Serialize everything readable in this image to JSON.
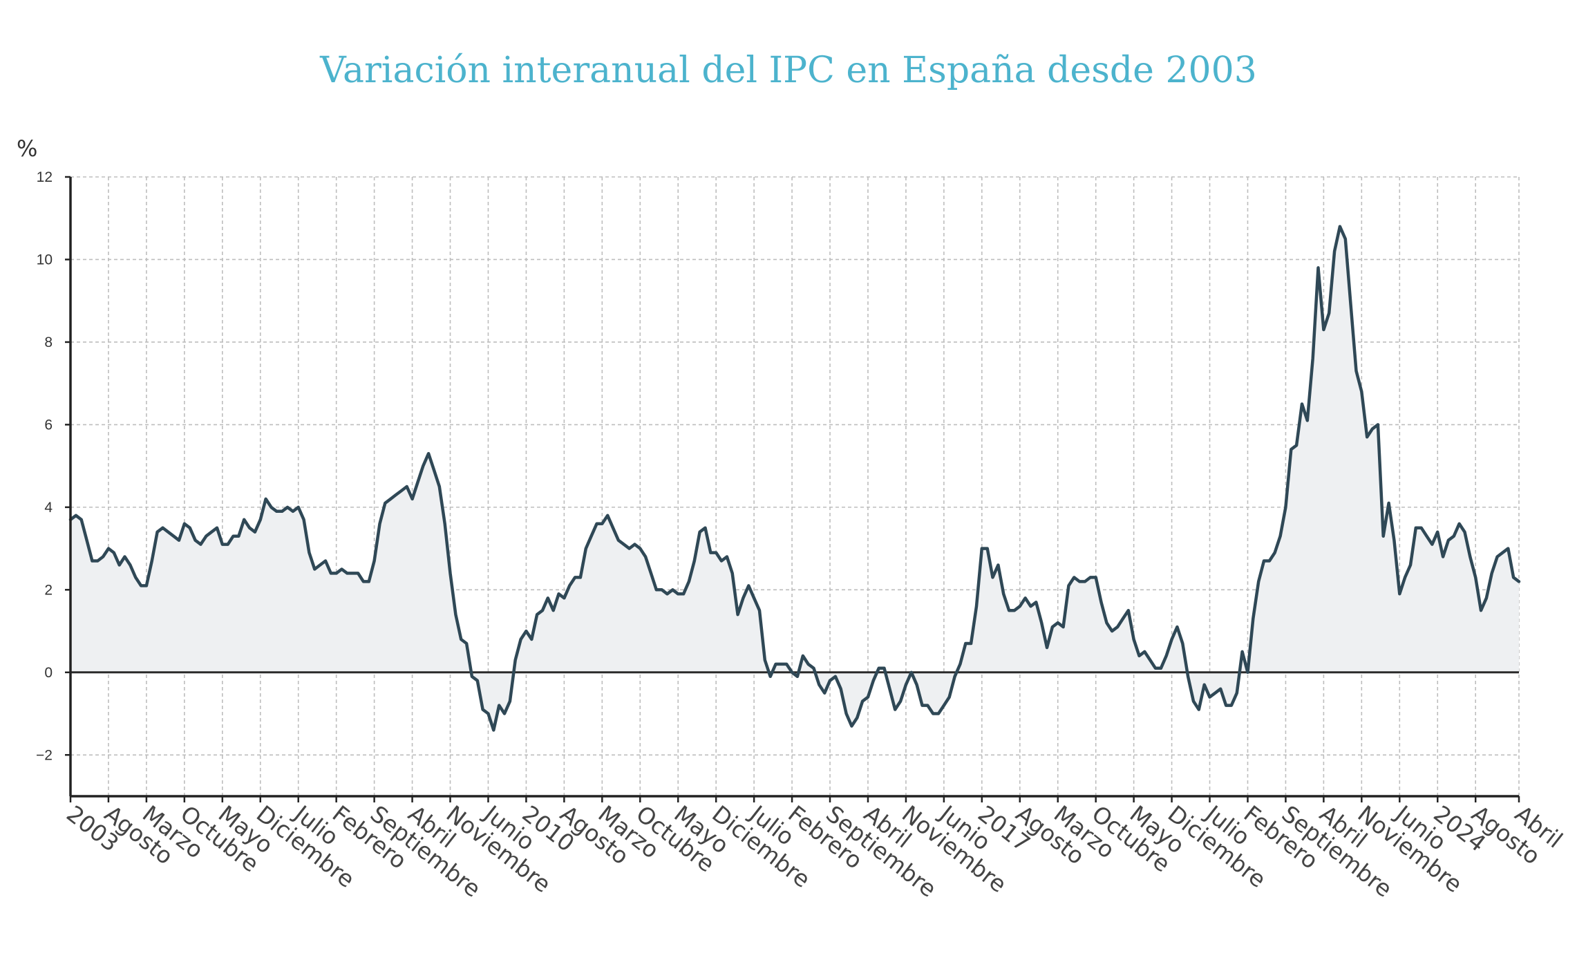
{
  "chart_data": {
    "type": "area",
    "title": "Variación interanual del IPC en España desde 2003",
    "ylabel": "%",
    "xlabel": "",
    "ylim": [
      -3,
      12
    ],
    "yticks": [
      -2,
      0,
      2,
      4,
      6,
      8,
      10,
      12
    ],
    "grid": true,
    "start": "2003-01",
    "end": "2025-04",
    "x_tick_labels": [
      {
        "label": "2003",
        "date": "2003-01"
      },
      {
        "label": "Agosto",
        "date": "2003-08"
      },
      {
        "label": "Marzo",
        "date": "2004-03"
      },
      {
        "label": "Octubre",
        "date": "2004-10"
      },
      {
        "label": "Mayo",
        "date": "2005-05"
      },
      {
        "label": "Diciembre",
        "date": "2005-12"
      },
      {
        "label": "Julio",
        "date": "2006-07"
      },
      {
        "label": "Febrero",
        "date": "2007-02"
      },
      {
        "label": "Septiembre",
        "date": "2007-09"
      },
      {
        "label": "Abril",
        "date": "2008-04"
      },
      {
        "label": "Noviembre",
        "date": "2008-11"
      },
      {
        "label": "Junio",
        "date": "2009-06"
      },
      {
        "label": "2010",
        "date": "2010-01"
      },
      {
        "label": "Agosto",
        "date": "2010-08"
      },
      {
        "label": "Marzo",
        "date": "2011-03"
      },
      {
        "label": "Octubre",
        "date": "2011-10"
      },
      {
        "label": "Mayo",
        "date": "2012-05"
      },
      {
        "label": "Diciembre",
        "date": "2012-12"
      },
      {
        "label": "Julio",
        "date": "2013-07"
      },
      {
        "label": "Febrero",
        "date": "2014-02"
      },
      {
        "label": "Septiembre",
        "date": "2014-09"
      },
      {
        "label": "Abril",
        "date": "2015-04"
      },
      {
        "label": "Noviembre",
        "date": "2015-11"
      },
      {
        "label": "Junio",
        "date": "2016-06"
      },
      {
        "label": "2017",
        "date": "2017-01"
      },
      {
        "label": "Agosto",
        "date": "2017-08"
      },
      {
        "label": "Marzo",
        "date": "2018-03"
      },
      {
        "label": "Octubre",
        "date": "2018-10"
      },
      {
        "label": "Mayo",
        "date": "2019-05"
      },
      {
        "label": "Diciembre",
        "date": "2019-12"
      },
      {
        "label": "Julio",
        "date": "2020-07"
      },
      {
        "label": "Febrero",
        "date": "2021-02"
      },
      {
        "label": "Septiembre",
        "date": "2021-09"
      },
      {
        "label": "Abril",
        "date": "2022-04"
      },
      {
        "label": "Noviembre",
        "date": "2022-11"
      },
      {
        "label": "Junio",
        "date": "2023-06"
      },
      {
        "label": "2024",
        "date": "2024-01"
      },
      {
        "label": "Agosto",
        "date": "2024-08"
      },
      {
        "label": "Abril",
        "date": "2025-04"
      }
    ],
    "series": [
      {
        "color": "#2f4856",
        "fill": "#eef0f2",
        "values": [
          3.7,
          3.8,
          3.7,
          3.2,
          2.7,
          2.7,
          2.8,
          3.0,
          2.9,
          2.6,
          2.8,
          2.6,
          2.3,
          2.1,
          2.1,
          2.7,
          3.4,
          3.5,
          3.4,
          3.3,
          3.2,
          3.6,
          3.5,
          3.2,
          3.1,
          3.3,
          3.4,
          3.5,
          3.1,
          3.1,
          3.3,
          3.3,
          3.7,
          3.5,
          3.4,
          3.7,
          4.2,
          4.0,
          3.9,
          3.9,
          4.0,
          3.9,
          4.0,
          3.7,
          2.9,
          2.5,
          2.6,
          2.7,
          2.4,
          2.4,
          2.5,
          2.4,
          2.4,
          2.4,
          2.2,
          2.2,
          2.7,
          3.6,
          4.1,
          4.2,
          4.3,
          4.4,
          4.5,
          4.2,
          4.6,
          5.0,
          5.3,
          4.9,
          4.5,
          3.6,
          2.4,
          1.4,
          0.8,
          0.7,
          -0.1,
          -0.2,
          -0.9,
          -1.0,
          -1.4,
          -0.8,
          -1.0,
          -0.7,
          0.3,
          0.8,
          1.0,
          0.8,
          1.4,
          1.5,
          1.8,
          1.5,
          1.9,
          1.8,
          2.1,
          2.3,
          2.3,
          3.0,
          3.3,
          3.6,
          3.6,
          3.8,
          3.5,
          3.2,
          3.1,
          3.0,
          3.1,
          3.0,
          2.8,
          2.4,
          2.0,
          2.0,
          1.9,
          2.0,
          1.9,
          1.9,
          2.2,
          2.7,
          3.4,
          3.5,
          2.9,
          2.9,
          2.7,
          2.8,
          2.4,
          1.4,
          1.8,
          2.1,
          1.8,
          1.5,
          0.3,
          -0.1,
          0.2,
          0.2,
          0.2,
          0.0,
          -0.1,
          0.4,
          0.2,
          0.1,
          -0.3,
          -0.5,
          -0.2,
          -0.1,
          -0.4,
          -1.0,
          -1.3,
          -1.1,
          -0.7,
          -0.6,
          -0.2,
          0.1,
          0.1,
          -0.4,
          -0.9,
          -0.7,
          -0.3,
          0.0,
          -0.3,
          -0.8,
          -0.8,
          -1.0,
          -1.0,
          -0.8,
          -0.6,
          -0.1,
          0.2,
          0.7,
          0.7,
          1.6,
          3.0,
          3.0,
          2.3,
          2.6,
          1.9,
          1.5,
          1.5,
          1.6,
          1.8,
          1.6,
          1.7,
          1.2,
          0.6,
          1.1,
          1.2,
          1.1,
          2.1,
          2.3,
          2.2,
          2.2,
          2.3,
          2.3,
          1.7,
          1.2,
          1.0,
          1.1,
          1.3,
          1.5,
          0.8,
          0.4,
          0.5,
          0.3,
          0.1,
          0.1,
          0.4,
          0.8,
          1.1,
          0.7,
          -0.1,
          -0.7,
          -0.9,
          -0.3,
          -0.6,
          -0.5,
          -0.4,
          -0.8,
          -0.8,
          -0.5,
          0.5,
          0.0,
          1.3,
          2.2,
          2.7,
          2.7,
          2.9,
          3.3,
          4.0,
          5.4,
          5.5,
          6.5,
          6.1,
          7.6,
          9.8,
          8.3,
          8.7,
          10.2,
          10.8,
          10.5,
          8.9,
          7.3,
          6.8,
          5.7,
          5.9,
          6.0,
          3.3,
          4.1,
          3.2,
          1.9,
          2.3,
          2.6,
          3.5,
          3.5,
          3.3,
          3.1,
          3.4,
          2.8,
          3.2,
          3.3,
          3.6,
          3.4,
          2.8,
          2.3,
          1.5,
          1.8,
          2.4,
          2.8,
          2.9,
          3.0,
          2.3,
          2.2
        ]
      }
    ]
  }
}
